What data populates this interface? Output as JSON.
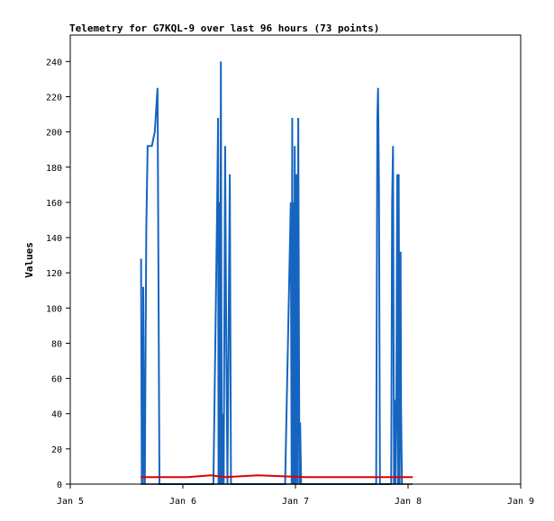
{
  "chart_data": {
    "type": "line",
    "title": "Telemetry for G7KQL-9 over last 96 hours (73 points)",
    "xlabel": "",
    "ylabel": "Values",
    "x_ticks": [
      "Jan 5",
      "Jan 6",
      "Jan 7",
      "Jan 8",
      "Jan 9"
    ],
    "y_ticks": [
      0,
      20,
      40,
      60,
      80,
      100,
      120,
      140,
      160,
      180,
      200,
      220,
      240
    ],
    "xlim": [
      0,
      96
    ],
    "ylim": [
      0,
      255
    ],
    "grid": false,
    "legend": "none",
    "series": [
      {
        "color": "#1565c0",
        "x": [
          15.1,
          15.25,
          15.35,
          15.45,
          15.55,
          15.65,
          15.75,
          15.9,
          16.0,
          16.2,
          16.5,
          17.0,
          17.4,
          18.0,
          18.6,
          19.0,
          19.5,
          22.0,
          30.5,
          31.3,
          31.5,
          31.6,
          31.75,
          31.95,
          32.1,
          32.3,
          32.5,
          32.7,
          33.0,
          33.25,
          33.5,
          34.0,
          34.25,
          34.5,
          34.75,
          35.0,
          35.5,
          37.0,
          45.8,
          47.0,
          47.2,
          47.3,
          47.45,
          47.55,
          47.7,
          47.85,
          48.0,
          48.2,
          48.4,
          48.6,
          48.85,
          49.0,
          49.2,
          65.2,
          65.45,
          65.6,
          65.8,
          66.0,
          68.0,
          68.4,
          68.6,
          68.8,
          69.0,
          69.1,
          69.3,
          69.5,
          69.7,
          69.85,
          70.0,
          70.2,
          70.4,
          70.5,
          70.7
        ],
        "values": [
          128,
          0,
          64,
          0,
          112,
          55,
          20,
          0,
          50,
          145,
          192,
          192,
          192,
          200,
          225,
          0,
          0,
          0,
          0,
          155,
          208,
          0,
          160,
          0,
          240,
          0,
          40,
          0,
          192,
          80,
          0,
          176,
          0,
          0,
          0,
          0,
          0,
          0,
          0,
          160,
          0,
          208,
          0,
          160,
          0,
          192,
          0,
          176,
          0,
          208,
          0,
          35,
          0,
          0,
          208,
          225,
          168,
          0,
          0,
          0,
          160,
          192,
          0,
          48,
          0,
          48,
          176,
          0,
          176,
          0,
          132,
          45,
          0
        ]
      },
      {
        "color": "#dd0000",
        "x": [
          15,
          18,
          25,
          30,
          33,
          40,
          50,
          60,
          70,
          73
        ],
        "values": [
          4,
          4,
          4,
          5,
          4,
          5,
          4,
          4,
          4,
          4
        ]
      },
      {
        "color": "#000000",
        "x": [
          15,
          73
        ],
        "values": [
          0,
          0
        ]
      }
    ]
  }
}
